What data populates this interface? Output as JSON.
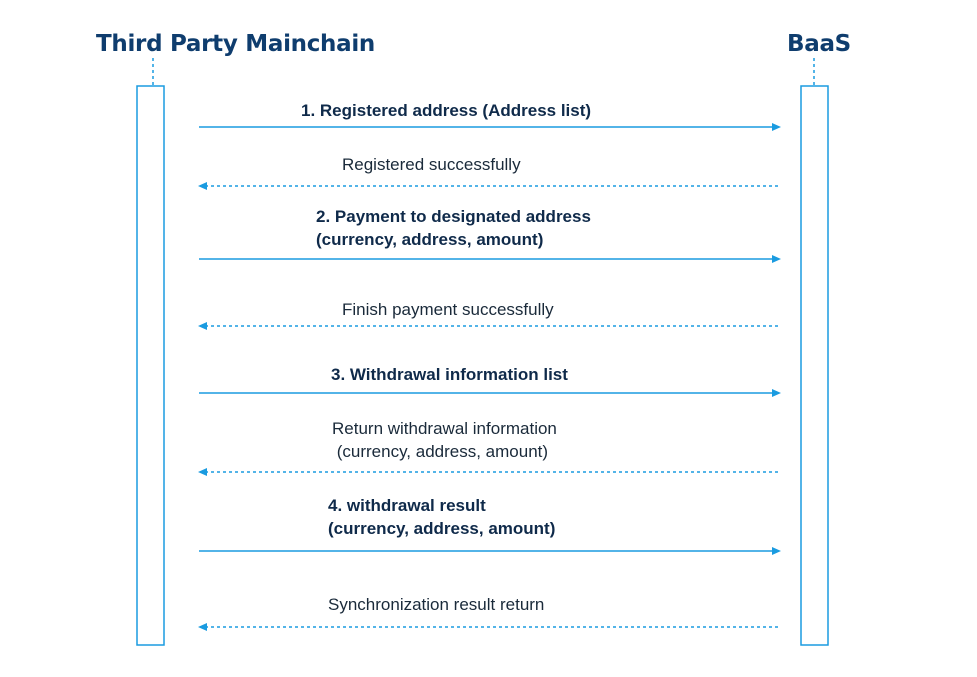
{
  "actors": {
    "left": "Third Party Mainchain",
    "right": "BaaS"
  },
  "messages": [
    {
      "lines": [
        "1. Registered address (Address list)"
      ],
      "style": "bold",
      "direction": "request"
    },
    {
      "lines": [
        "Registered successfully"
      ],
      "style": "normal",
      "direction": "response"
    },
    {
      "lines": [
        "2. Payment to designated address",
        "(currency, address, amount)"
      ],
      "style": "bold",
      "direction": "request"
    },
    {
      "lines": [
        "Finish payment successfully"
      ],
      "style": "normal",
      "direction": "response"
    },
    {
      "lines": [
        "3. Withdrawal information list"
      ],
      "style": "bold",
      "direction": "request"
    },
    {
      "lines": [
        "Return withdrawal information",
        " (currency, address, amount)"
      ],
      "style": "normal",
      "direction": "response"
    },
    {
      "lines": [
        "4. withdrawal result",
        "(currency, address, amount)"
      ],
      "style": "bold",
      "direction": "request"
    },
    {
      "lines": [
        "Synchronization result return"
      ],
      "style": "normal",
      "direction": "response"
    }
  ],
  "colors": {
    "arrow": "#1a9be0",
    "actor_text": "#0f3d6e"
  }
}
